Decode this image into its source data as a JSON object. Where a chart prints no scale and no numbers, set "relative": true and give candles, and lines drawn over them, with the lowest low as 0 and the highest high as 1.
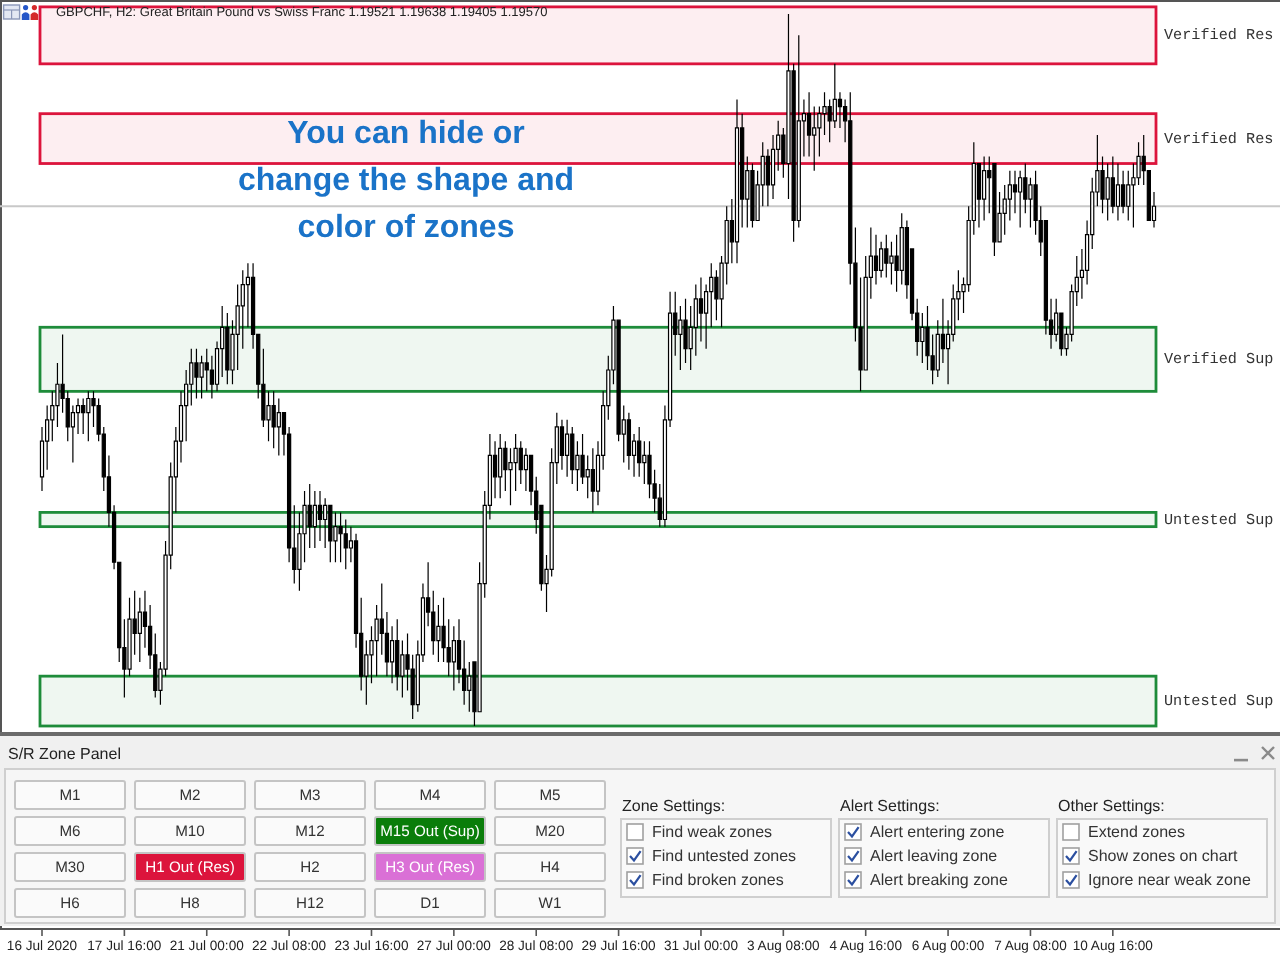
{
  "chart_data": [
    {
      "type": "candlestick",
      "title": "GBPCHF, H2: Great Britain Pound vs Swiss Franc 1.19521 1.19638 1.19405 1.19570",
      "relative": true,
      "color": "#000000",
      "categories": [
        "16 Jul 2020",
        null,
        null,
        null,
        null,
        null,
        null,
        null,
        null,
        null,
        null,
        null,
        null,
        null,
        null,
        null,
        "17 Jul 16:00",
        null,
        null,
        null,
        null,
        null,
        null,
        null,
        null,
        null,
        null,
        null,
        null,
        null,
        null,
        null,
        "21 Jul 00:00",
        null,
        null,
        null,
        null,
        null,
        null,
        null,
        null,
        null,
        null,
        null,
        null,
        null,
        null,
        null,
        "22 Jul 08:00",
        null,
        null,
        null,
        null,
        null,
        null,
        null,
        null,
        null,
        null,
        null,
        null,
        null,
        null,
        null,
        "23 Jul 16:00",
        null,
        null,
        null,
        null,
        null,
        null,
        null,
        null,
        null,
        null,
        null,
        null,
        null,
        null,
        null,
        "27 Jul 00:00",
        null,
        null,
        null,
        null,
        null,
        null,
        null,
        null,
        null,
        null,
        null,
        null,
        null,
        null,
        null,
        "28 Jul 08:00",
        null,
        null,
        null,
        null,
        null,
        null,
        null,
        null,
        null,
        null,
        null,
        null,
        null,
        null,
        null,
        "29 Jul 16:00",
        null,
        null,
        null,
        null,
        null,
        null,
        null,
        null,
        null,
        null,
        null,
        null,
        null,
        null,
        null,
        "31 Jul 00:00",
        null,
        null,
        null,
        null,
        null,
        null,
        null,
        null,
        null,
        null,
        null,
        null,
        null,
        null,
        null,
        "3 Aug 08:00",
        null,
        null,
        null,
        null,
        null,
        null,
        null,
        null,
        null,
        null,
        null,
        null,
        null,
        null,
        null,
        "4 Aug 16:00",
        null,
        null,
        null,
        null,
        null,
        null,
        null,
        null,
        null,
        null,
        null,
        null,
        null,
        null,
        null,
        "6 Aug 00:00",
        null,
        null,
        null,
        null,
        null,
        null,
        null,
        null,
        null,
        null,
        null,
        null,
        null,
        null,
        null,
        "7 Aug 08:00",
        null,
        null,
        null,
        null,
        null,
        null,
        null,
        null,
        null,
        null,
        null,
        null,
        null,
        null,
        null,
        "10 Aug 16:00",
        null,
        null,
        null,
        null,
        null,
        null,
        null,
        null
      ],
      "ohlc": [
        [
          0.35,
          0.42,
          0.33,
          0.4
        ],
        [
          0.4,
          0.45,
          0.36,
          0.43
        ],
        [
          0.43,
          0.47,
          0.4,
          0.45
        ],
        [
          0.45,
          0.51,
          0.42,
          0.48
        ],
        [
          0.48,
          0.55,
          0.44,
          0.46
        ],
        [
          0.46,
          0.47,
          0.4,
          0.42
        ],
        [
          0.42,
          0.45,
          0.37,
          0.44
        ],
        [
          0.44,
          0.46,
          0.41,
          0.45
        ],
        [
          0.45,
          0.46,
          0.41,
          0.44
        ],
        [
          0.44,
          0.47,
          0.4,
          0.46
        ],
        [
          0.46,
          0.47,
          0.42,
          0.45
        ],
        [
          0.45,
          0.46,
          0.4,
          0.41
        ],
        [
          0.41,
          0.42,
          0.33,
          0.35
        ],
        [
          0.35,
          0.38,
          0.28,
          0.3
        ],
        [
          0.3,
          0.31,
          0.22,
          0.23
        ],
        [
          0.23,
          0.23,
          0.09,
          0.11
        ],
        [
          0.11,
          0.15,
          0.04,
          0.08
        ],
        [
          0.08,
          0.18,
          0.07,
          0.15
        ],
        [
          0.15,
          0.19,
          0.1,
          0.13
        ],
        [
          0.13,
          0.18,
          0.09,
          0.16
        ],
        [
          0.16,
          0.19,
          0.11,
          0.14
        ],
        [
          0.14,
          0.17,
          0.08,
          0.1
        ],
        [
          0.1,
          0.13,
          0.04,
          0.05
        ],
        [
          0.05,
          0.09,
          0.03,
          0.08
        ],
        [
          0.08,
          0.26,
          0.07,
          0.24
        ],
        [
          0.24,
          0.37,
          0.22,
          0.35
        ],
        [
          0.35,
          0.42,
          0.3,
          0.4
        ],
        [
          0.4,
          0.47,
          0.37,
          0.45
        ],
        [
          0.45,
          0.5,
          0.4,
          0.48
        ],
        [
          0.48,
          0.53,
          0.45,
          0.51
        ],
        [
          0.51,
          0.53,
          0.46,
          0.49
        ],
        [
          0.49,
          0.52,
          0.46,
          0.51
        ],
        [
          0.51,
          0.53,
          0.47,
          0.5
        ],
        [
          0.5,
          0.52,
          0.46,
          0.48
        ],
        [
          0.48,
          0.54,
          0.47,
          0.53
        ],
        [
          0.53,
          0.59,
          0.49,
          0.56
        ],
        [
          0.56,
          0.58,
          0.48,
          0.5
        ],
        [
          0.5,
          0.57,
          0.48,
          0.55
        ],
        [
          0.55,
          0.62,
          0.5,
          0.59
        ],
        [
          0.59,
          0.64,
          0.53,
          0.62
        ],
        [
          0.62,
          0.65,
          0.56,
          0.63
        ],
        [
          0.63,
          0.65,
          0.53,
          0.55
        ],
        [
          0.55,
          0.55,
          0.46,
          0.48
        ],
        [
          0.48,
          0.53,
          0.42,
          0.43
        ],
        [
          0.43,
          0.47,
          0.4,
          0.45
        ],
        [
          0.45,
          0.47,
          0.39,
          0.42
        ],
        [
          0.42,
          0.46,
          0.38,
          0.44
        ],
        [
          0.44,
          0.44,
          0.38,
          0.41
        ],
        [
          0.41,
          0.42,
          0.23,
          0.25
        ],
        [
          0.25,
          0.31,
          0.2,
          0.22
        ],
        [
          0.22,
          0.3,
          0.19,
          0.27
        ],
        [
          0.27,
          0.33,
          0.23,
          0.31
        ],
        [
          0.31,
          0.34,
          0.25,
          0.28
        ],
        [
          0.28,
          0.33,
          0.25,
          0.31
        ],
        [
          0.31,
          0.33,
          0.26,
          0.29
        ],
        [
          0.29,
          0.32,
          0.25,
          0.31
        ],
        [
          0.31,
          0.31,
          0.23,
          0.26
        ],
        [
          0.26,
          0.3,
          0.23,
          0.28
        ],
        [
          0.28,
          0.3,
          0.23,
          0.27
        ],
        [
          0.27,
          0.29,
          0.22,
          0.25
        ],
        [
          0.25,
          0.28,
          0.23,
          0.26
        ],
        [
          0.26,
          0.27,
          0.11,
          0.13
        ],
        [
          0.13,
          0.18,
          0.05,
          0.07
        ],
        [
          0.07,
          0.12,
          0.03,
          0.1
        ],
        [
          0.1,
          0.14,
          0.06,
          0.12
        ],
        [
          0.12,
          0.17,
          0.07,
          0.15
        ],
        [
          0.15,
          0.2,
          0.1,
          0.13
        ],
        [
          0.13,
          0.16,
          0.07,
          0.09
        ],
        [
          0.09,
          0.14,
          0.06,
          0.12
        ],
        [
          0.12,
          0.15,
          0.05,
          0.07
        ],
        [
          0.07,
          0.12,
          0.04,
          0.1
        ],
        [
          0.1,
          0.13,
          0.05,
          0.08
        ],
        [
          0.08,
          0.1,
          0.01,
          0.03
        ],
        [
          0.03,
          0.12,
          0.02,
          0.1
        ],
        [
          0.1,
          0.2,
          0.09,
          0.18
        ],
        [
          0.18,
          0.23,
          0.14,
          0.16
        ],
        [
          0.16,
          0.19,
          0.1,
          0.12
        ],
        [
          0.12,
          0.17,
          0.09,
          0.14
        ],
        [
          0.14,
          0.18,
          0.09,
          0.11
        ],
        [
          0.11,
          0.15,
          0.07,
          0.09
        ],
        [
          0.09,
          0.14,
          0.05,
          0.12
        ],
        [
          0.12,
          0.15,
          0.06,
          0.08
        ],
        [
          0.08,
          0.12,
          0.03,
          0.05
        ],
        [
          0.05,
          0.09,
          0.02,
          0.07
        ],
        [
          0.09,
          0.09,
          0.0,
          0.02
        ],
        [
          0.02,
          0.23,
          0.02,
          0.2
        ],
        [
          0.2,
          0.33,
          0.18,
          0.31
        ],
        [
          0.31,
          0.41,
          0.29,
          0.38
        ],
        [
          0.38,
          0.4,
          0.32,
          0.35
        ],
        [
          0.35,
          0.41,
          0.32,
          0.39
        ],
        [
          0.39,
          0.4,
          0.33,
          0.36
        ],
        [
          0.36,
          0.39,
          0.31,
          0.37
        ],
        [
          0.37,
          0.41,
          0.33,
          0.39
        ],
        [
          0.39,
          0.4,
          0.34,
          0.36
        ],
        [
          0.36,
          0.39,
          0.33,
          0.38
        ],
        [
          0.38,
          0.38,
          0.31,
          0.33
        ],
        [
          0.33,
          0.35,
          0.27,
          0.29
        ],
        [
          0.31,
          0.31,
          0.19,
          0.2
        ],
        [
          0.2,
          0.24,
          0.16,
          0.22
        ],
        [
          0.22,
          0.39,
          0.21,
          0.37
        ],
        [
          0.37,
          0.44,
          0.34,
          0.42
        ],
        [
          0.42,
          0.43,
          0.36,
          0.38
        ],
        [
          0.38,
          0.43,
          0.35,
          0.41
        ],
        [
          0.41,
          0.42,
          0.34,
          0.36
        ],
        [
          0.36,
          0.4,
          0.33,
          0.38
        ],
        [
          0.38,
          0.41,
          0.34,
          0.35
        ],
        [
          0.35,
          0.38,
          0.32,
          0.36
        ],
        [
          0.36,
          0.39,
          0.3,
          0.33
        ],
        [
          0.33,
          0.4,
          0.31,
          0.38
        ],
        [
          0.38,
          0.47,
          0.36,
          0.45
        ],
        [
          0.45,
          0.52,
          0.43,
          0.5
        ],
        [
          0.5,
          0.59,
          0.48,
          0.57
        ],
        [
          0.57,
          0.57,
          0.4,
          0.41
        ],
        [
          0.41,
          0.45,
          0.37,
          0.43
        ],
        [
          0.43,
          0.44,
          0.36,
          0.38
        ],
        [
          0.38,
          0.41,
          0.35,
          0.4
        ],
        [
          0.4,
          0.42,
          0.35,
          0.37
        ],
        [
          0.37,
          0.4,
          0.34,
          0.38
        ],
        [
          0.38,
          0.4,
          0.32,
          0.34
        ],
        [
          0.34,
          0.36,
          0.3,
          0.32
        ],
        [
          0.32,
          0.34,
          0.28,
          0.29
        ],
        [
          0.29,
          0.45,
          0.28,
          0.43
        ],
        [
          0.43,
          0.61,
          0.42,
          0.58
        ],
        [
          0.58,
          0.61,
          0.52,
          0.55
        ],
        [
          0.55,
          0.59,
          0.5,
          0.57
        ],
        [
          0.57,
          0.6,
          0.51,
          0.53
        ],
        [
          0.53,
          0.59,
          0.5,
          0.56
        ],
        [
          0.56,
          0.62,
          0.52,
          0.6
        ],
        [
          0.6,
          0.63,
          0.54,
          0.58
        ],
        [
          0.58,
          0.62,
          0.53,
          0.61
        ],
        [
          0.61,
          0.65,
          0.56,
          0.63
        ],
        [
          0.63,
          0.64,
          0.57,
          0.6
        ],
        [
          0.6,
          0.66,
          0.56,
          0.65
        ],
        [
          0.65,
          0.73,
          0.62,
          0.71
        ],
        [
          0.71,
          0.74,
          0.65,
          0.68
        ],
        [
          0.68,
          0.88,
          0.65,
          0.84
        ],
        [
          0.84,
          0.86,
          0.7,
          0.74
        ],
        [
          0.74,
          0.8,
          0.7,
          0.78
        ],
        [
          0.78,
          0.79,
          0.7,
          0.71
        ],
        [
          0.71,
          0.78,
          0.71,
          0.76
        ],
        [
          0.76,
          0.82,
          0.73,
          0.8
        ],
        [
          0.8,
          0.81,
          0.73,
          0.76
        ],
        [
          0.76,
          0.83,
          0.74,
          0.81
        ],
        [
          0.81,
          0.85,
          0.78,
          0.83
        ],
        [
          0.83,
          0.84,
          0.77,
          0.79
        ],
        [
          0.79,
          1.0,
          0.74,
          0.92
        ],
        [
          0.92,
          0.93,
          0.68,
          0.71
        ],
        [
          0.71,
          0.97,
          0.7,
          0.85
        ],
        [
          0.85,
          0.88,
          0.8,
          0.86
        ],
        [
          0.86,
          0.89,
          0.8,
          0.83
        ],
        [
          0.83,
          0.87,
          0.78,
          0.84
        ],
        [
          0.84,
          0.87,
          0.8,
          0.86
        ],
        [
          0.86,
          0.89,
          0.83,
          0.87
        ],
        [
          0.87,
          0.88,
          0.82,
          0.85
        ],
        [
          0.85,
          0.93,
          0.84,
          0.88
        ],
        [
          0.88,
          0.89,
          0.84,
          0.87
        ],
        [
          0.87,
          0.88,
          0.82,
          0.85
        ],
        [
          0.85,
          0.89,
          0.62,
          0.65
        ],
        [
          0.65,
          0.7,
          0.54,
          0.56
        ],
        [
          0.56,
          0.63,
          0.47,
          0.5
        ],
        [
          0.5,
          0.66,
          0.5,
          0.63
        ],
        [
          0.63,
          0.7,
          0.6,
          0.66
        ],
        [
          0.66,
          0.69,
          0.62,
          0.64
        ],
        [
          0.64,
          0.68,
          0.63,
          0.67
        ],
        [
          0.67,
          0.69,
          0.63,
          0.65
        ],
        [
          0.65,
          0.68,
          0.62,
          0.66
        ],
        [
          0.66,
          0.69,
          0.61,
          0.64
        ],
        [
          0.64,
          0.72,
          0.62,
          0.7
        ],
        [
          0.7,
          0.71,
          0.6,
          0.62
        ],
        [
          0.67,
          0.67,
          0.57,
          0.58
        ],
        [
          0.58,
          0.6,
          0.52,
          0.54
        ],
        [
          0.54,
          0.58,
          0.51,
          0.56
        ],
        [
          0.56,
          0.59,
          0.5,
          0.52
        ],
        [
          0.52,
          0.55,
          0.48,
          0.5
        ],
        [
          0.5,
          0.57,
          0.49,
          0.55
        ],
        [
          0.55,
          0.6,
          0.51,
          0.53
        ],
        [
          0.53,
          0.57,
          0.48,
          0.55
        ],
        [
          0.55,
          0.62,
          0.54,
          0.6
        ],
        [
          0.6,
          0.64,
          0.57,
          0.61
        ],
        [
          0.61,
          0.63,
          0.58,
          0.62
        ],
        [
          0.62,
          0.73,
          0.61,
          0.71
        ],
        [
          0.71,
          0.82,
          0.69,
          0.79
        ],
        [
          0.79,
          0.79,
          0.7,
          0.74
        ],
        [
          0.74,
          0.8,
          0.71,
          0.78
        ],
        [
          0.78,
          0.8,
          0.72,
          0.77
        ],
        [
          0.79,
          0.79,
          0.66,
          0.68
        ],
        [
          0.68,
          0.75,
          0.68,
          0.72
        ],
        [
          0.72,
          0.76,
          0.69,
          0.74
        ],
        [
          0.74,
          0.78,
          0.71,
          0.76
        ],
        [
          0.76,
          0.78,
          0.72,
          0.75
        ],
        [
          0.75,
          0.78,
          0.7,
          0.77
        ],
        [
          0.77,
          0.79,
          0.72,
          0.74
        ],
        [
          0.74,
          0.77,
          0.7,
          0.76
        ],
        [
          0.76,
          0.78,
          0.69,
          0.71
        ],
        [
          0.71,
          0.73,
          0.66,
          0.68
        ],
        [
          0.71,
          0.71,
          0.55,
          0.57
        ],
        [
          0.57,
          0.6,
          0.53,
          0.55
        ],
        [
          0.55,
          0.6,
          0.54,
          0.58
        ],
        [
          0.58,
          0.58,
          0.52,
          0.53
        ],
        [
          0.53,
          0.56,
          0.52,
          0.55
        ],
        [
          0.55,
          0.62,
          0.54,
          0.61
        ],
        [
          0.61,
          0.66,
          0.59,
          0.63
        ],
        [
          0.63,
          0.67,
          0.6,
          0.64
        ],
        [
          0.64,
          0.71,
          0.62,
          0.69
        ],
        [
          0.69,
          0.77,
          0.67,
          0.75
        ],
        [
          0.75,
          0.83,
          0.73,
          0.78
        ],
        [
          0.78,
          0.8,
          0.72,
          0.74
        ],
        [
          0.74,
          0.79,
          0.71,
          0.77
        ],
        [
          0.77,
          0.8,
          0.72,
          0.73
        ],
        [
          0.73,
          0.79,
          0.71,
          0.76
        ],
        [
          0.76,
          0.78,
          0.72,
          0.73
        ],
        [
          0.73,
          0.78,
          0.71,
          0.76
        ],
        [
          0.76,
          0.79,
          0.7,
          0.77
        ],
        [
          0.77,
          0.82,
          0.76,
          0.8
        ],
        [
          0.8,
          0.83,
          0.76,
          0.78
        ],
        [
          0.78,
          0.78,
          0.71,
          0.71
        ],
        [
          0.71,
          0.75,
          0.7,
          0.73
        ]
      ],
      "bands": [
        {
          "axis": "y",
          "from": 0.93,
          "to": 1.01,
          "label": "Verified Res",
          "color": "#dc143c"
        },
        {
          "axis": "y",
          "from": 0.79,
          "to": 0.86,
          "label": "Verified Res",
          "color": "#dc143c"
        },
        {
          "axis": "y",
          "from": 0.47,
          "to": 0.56,
          "label": "Verified Sup",
          "color": "#1e8c3a"
        },
        {
          "axis": "y",
          "from": 0.28,
          "to": 0.3,
          "label": "Untested Sup",
          "color": "#1e8c3a"
        },
        {
          "axis": "y",
          "from": 0,
          "to": 0.07,
          "label": "Untested Sup",
          "color": "#1e8c3a"
        }
      ],
      "ref_lines": [
        {
          "axis": "y",
          "value": 0.73,
          "color": "#c8c8c8"
        }
      ],
      "annotations": [
        "You can hide or change the shape and color of zones"
      ]
    },
    {
      "type": "other",
      "title": "S/R Zone Panel",
      "categories": [
        "M1",
        "M2",
        "M3",
        "M4",
        "M5",
        "M6",
        "M10",
        "M12",
        "M15 Out (Sup)",
        "M20",
        "M30",
        "H1 Out (Res)",
        "H2",
        "H3 Out (Res)",
        "H4",
        "H6",
        "H8",
        "H12",
        "D1",
        "W1"
      ],
      "colors": [
        "#fafafa",
        "#fafafa",
        "#fafafa",
        "#fafafa",
        "#fafafa",
        "#fafafa",
        "#fafafa",
        "#fafafa",
        "#0a7d0a",
        "#fafafa",
        "#fafafa",
        "#dc143c",
        "#fafafa",
        "#da70d6",
        "#fafafa",
        "#fafafa",
        "#fafafa",
        "#fafafa",
        "#fafafa",
        "#fafafa"
      ],
      "annotations": [
        "Zone Settings:",
        "Find weak zones",
        "Find untested zones",
        "Find broken zones",
        "Alert Settings:",
        "Alert entering zone",
        "Alert leaving zone",
        "Alert breaking zone",
        "Other Settings:",
        "Extend zones",
        "Show zones on chart",
        "Ignore near weak zone"
      ]
    }
  ]
}
